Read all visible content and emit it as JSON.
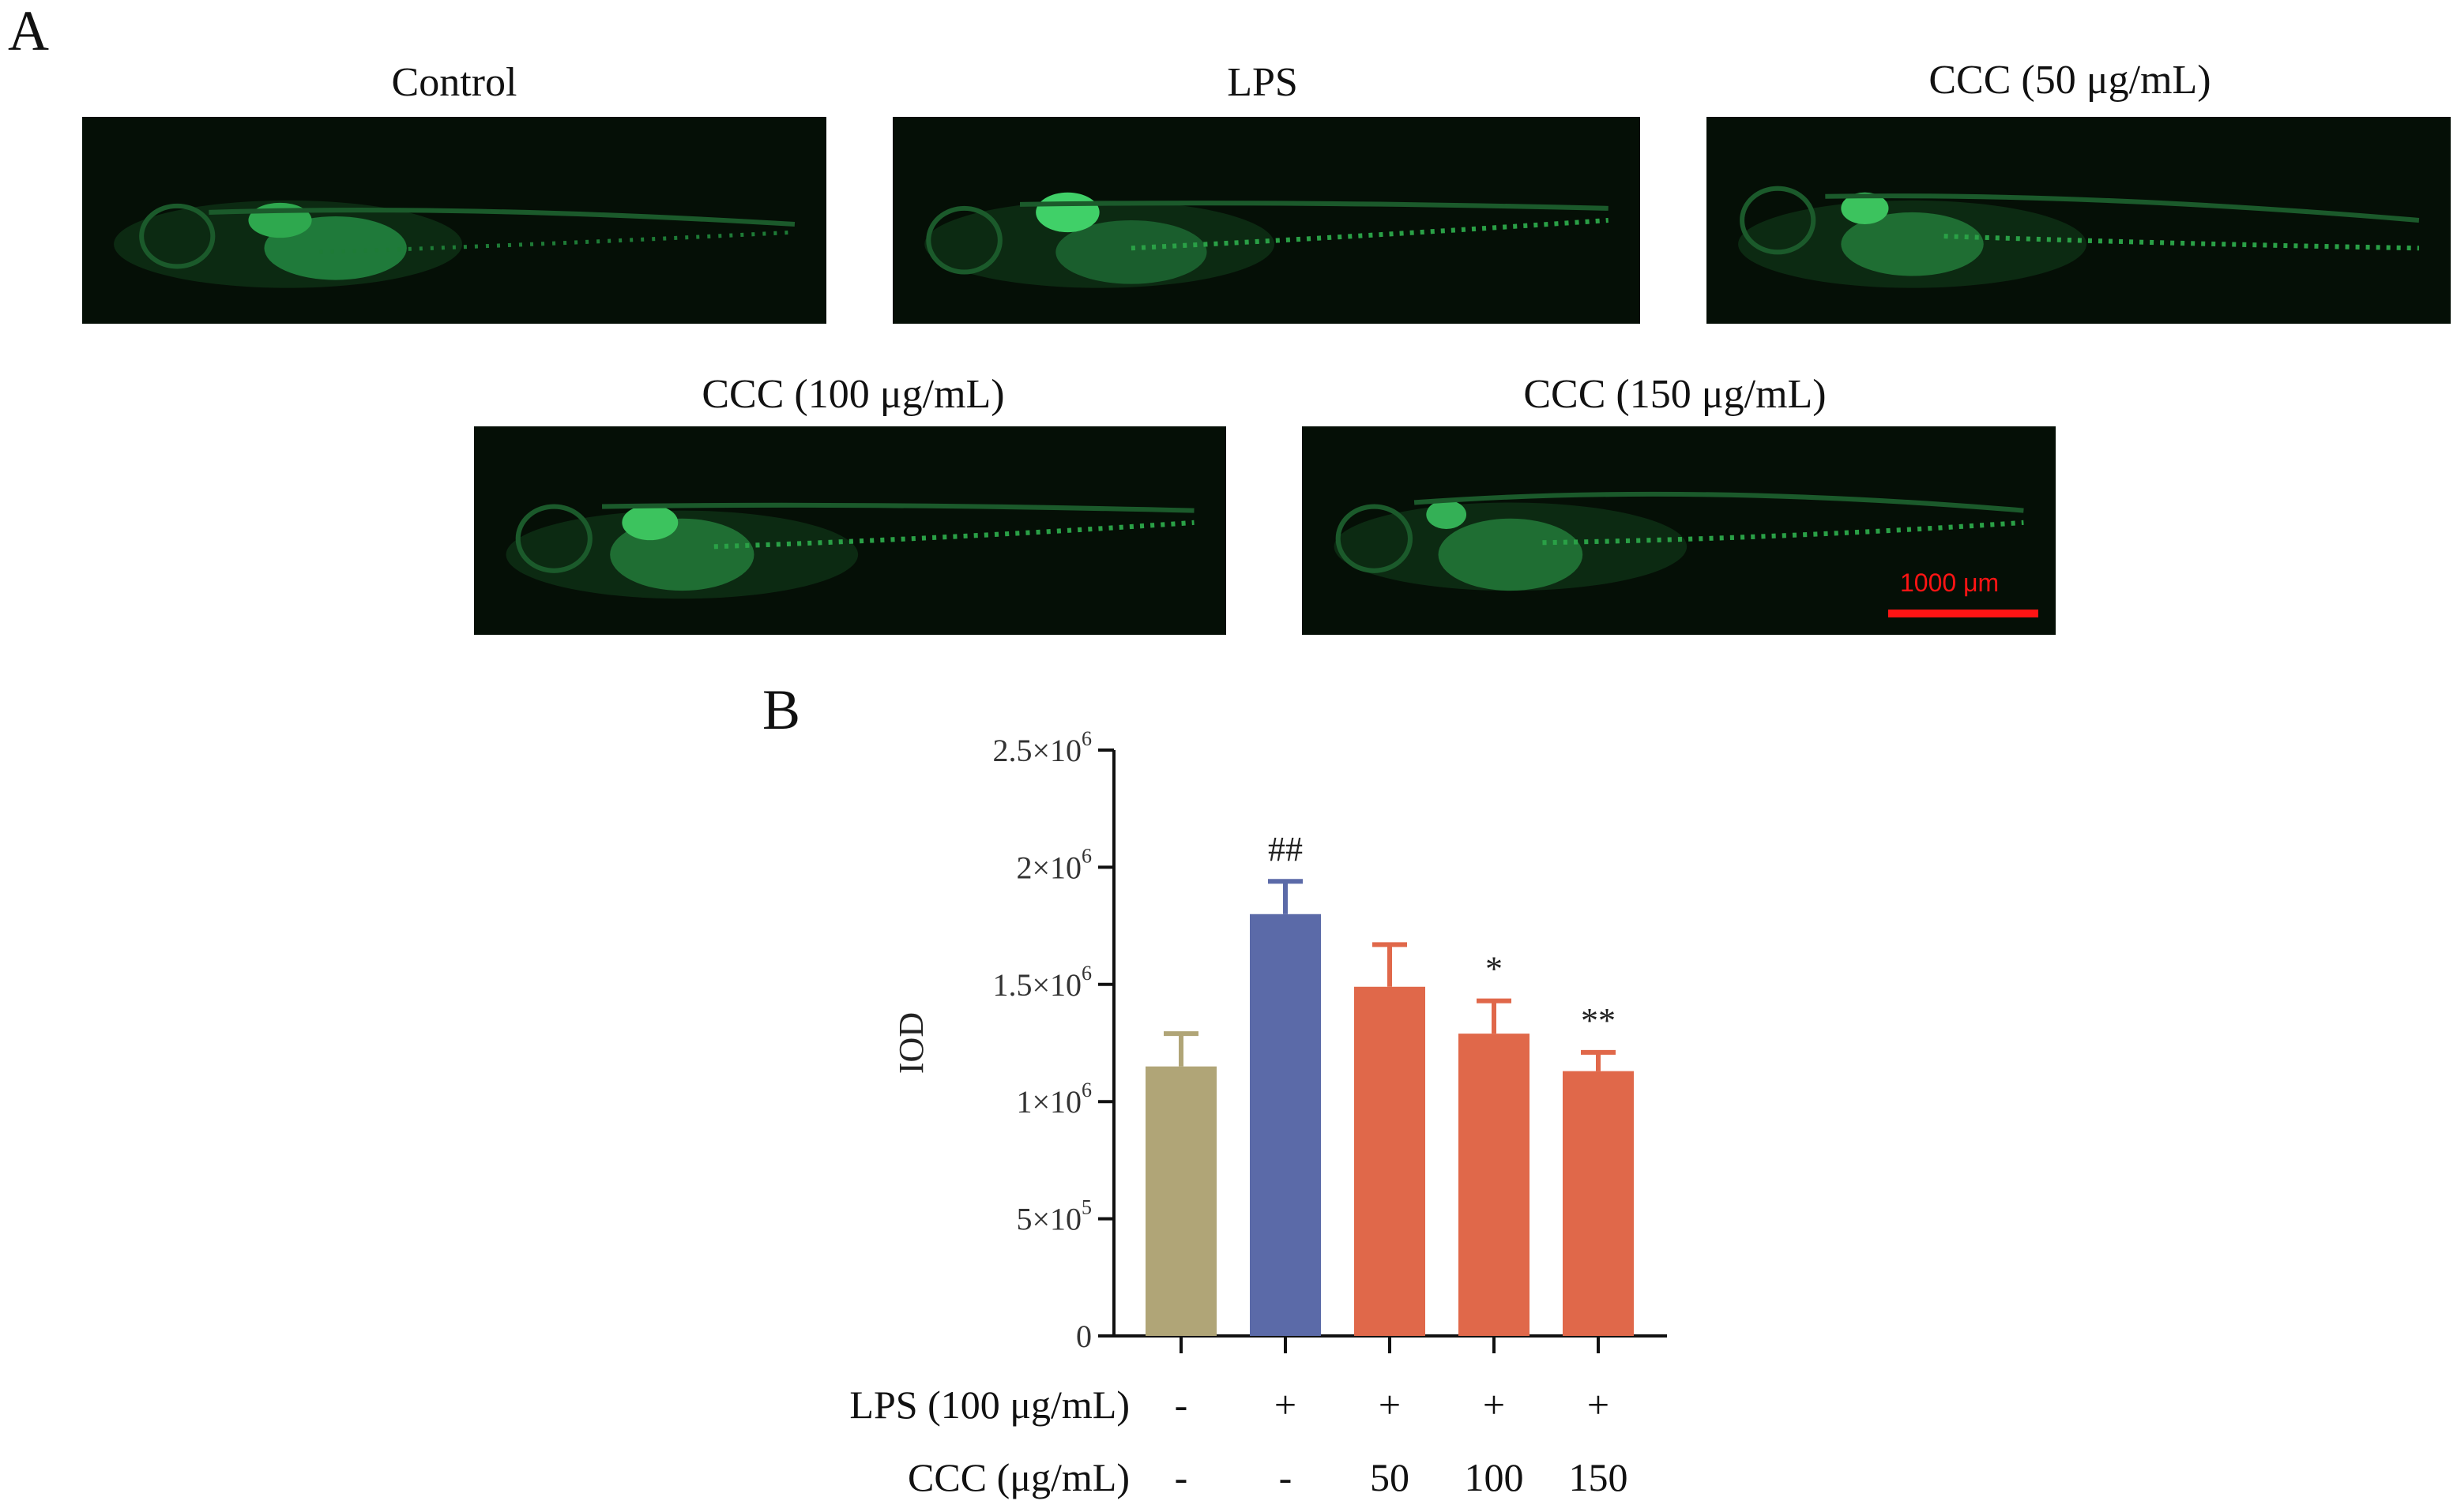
{
  "panels": {
    "a_label": "A",
    "b_label": "B"
  },
  "images": [
    {
      "title": "Control"
    },
    {
      "title": "LPS"
    },
    {
      "title": "CCC (50 μg/mL)"
    },
    {
      "title": "CCC (100 μg/mL)"
    },
    {
      "title": "CCC (150 μg/mL)"
    }
  ],
  "scale_bar": {
    "label": "1000 μm",
    "color": "#ff1414"
  },
  "chart_data": {
    "type": "bar",
    "ylabel": "IOD",
    "ylim": [
      0,
      2500000
    ],
    "yticks": [
      {
        "value": 0,
        "base": "0",
        "exp": ""
      },
      {
        "value": 500000,
        "base": "5×10",
        "exp": "5"
      },
      {
        "value": 1000000,
        "base": "1×10",
        "exp": "6"
      },
      {
        "value": 1500000,
        "base": "1.5×10",
        "exp": "6"
      },
      {
        "value": 2000000,
        "base": "2×10",
        "exp": "6"
      },
      {
        "value": 2500000,
        "base": "2.5×10",
        "exp": "6"
      }
    ],
    "bars": [
      {
        "value": 1150000,
        "error": 140000,
        "color": "#b0a577",
        "annotation": ""
      },
      {
        "value": 1800000,
        "error": 140000,
        "color": "#5b6aa8",
        "annotation": "##"
      },
      {
        "value": 1490000,
        "error": 180000,
        "color": "#e0684a",
        "annotation": ""
      },
      {
        "value": 1290000,
        "error": 140000,
        "color": "#e0684a",
        "annotation": "*"
      },
      {
        "value": 1130000,
        "error": 80000,
        "color": "#e0684a",
        "annotation": "**"
      }
    ],
    "conditions": [
      {
        "label": "LPS (100 μg/mL)",
        "values": [
          "-",
          "+",
          "+",
          "+",
          "+"
        ]
      },
      {
        "label": "CCC (μg/mL)",
        "values": [
          "-",
          "-",
          "50",
          "100",
          "150"
        ]
      }
    ],
    "grid": false
  }
}
